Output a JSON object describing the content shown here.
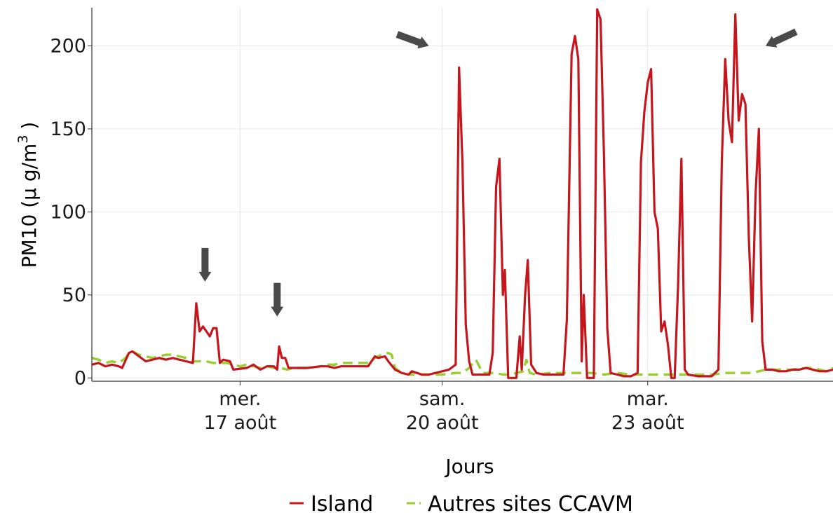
{
  "chart_data": {
    "type": "line",
    "xlabel": "Jours",
    "ylabel": "PM10 (µ g/m",
    "ylabel_sup": "3",
    "ylabel_close": ")",
    "ylim": [
      -2,
      223
    ],
    "xlim": [
      0,
      11
    ],
    "grid": true,
    "legend_position": "bottom",
    "y_ticks": [
      {
        "value": 0,
        "label": "0"
      },
      {
        "value": 50,
        "label": "50"
      },
      {
        "value": 100,
        "label": "100"
      },
      {
        "value": 150,
        "label": "150"
      },
      {
        "value": 200,
        "label": "200"
      }
    ],
    "x_ticks": [
      {
        "day": 2.2,
        "line1": "mer.",
        "line2": "17 août"
      },
      {
        "day": 5.2,
        "line1": "sam.",
        "line2": "20 août"
      },
      {
        "day": 8.25,
        "line1": "mar.",
        "line2": "23 août"
      }
    ],
    "series": [
      {
        "name": "Island",
        "color": "#c4161c",
        "style": "solid",
        "points": [
          [
            0.0,
            8
          ],
          [
            0.1,
            9
          ],
          [
            0.2,
            7
          ],
          [
            0.3,
            8
          ],
          [
            0.4,
            7
          ],
          [
            0.45,
            6
          ],
          [
            0.55,
            15
          ],
          [
            0.6,
            16
          ],
          [
            0.7,
            13
          ],
          [
            0.8,
            10
          ],
          [
            0.9,
            11
          ],
          [
            1.0,
            12
          ],
          [
            1.1,
            11
          ],
          [
            1.2,
            12
          ],
          [
            1.3,
            11
          ],
          [
            1.4,
            10
          ],
          [
            1.5,
            9
          ],
          [
            1.55,
            45
          ],
          [
            1.6,
            28
          ],
          [
            1.65,
            31
          ],
          [
            1.7,
            28
          ],
          [
            1.75,
            25
          ],
          [
            1.8,
            30
          ],
          [
            1.85,
            30
          ],
          [
            1.9,
            9
          ],
          [
            1.95,
            11
          ],
          [
            2.05,
            10
          ],
          [
            2.1,
            5
          ],
          [
            2.3,
            6
          ],
          [
            2.4,
            8
          ],
          [
            2.5,
            5
          ],
          [
            2.6,
            7
          ],
          [
            2.7,
            7
          ],
          [
            2.75,
            5
          ],
          [
            2.78,
            19
          ],
          [
            2.82,
            12
          ],
          [
            2.87,
            12
          ],
          [
            2.92,
            6
          ],
          [
            3.1,
            6
          ],
          [
            3.2,
            6
          ],
          [
            3.4,
            7
          ],
          [
            3.5,
            7
          ],
          [
            3.6,
            6
          ],
          [
            3.7,
            7
          ],
          [
            3.85,
            7
          ],
          [
            4.0,
            7
          ],
          [
            4.1,
            7
          ],
          [
            4.2,
            13
          ],
          [
            4.25,
            12
          ],
          [
            4.35,
            13
          ],
          [
            4.4,
            10
          ],
          [
            4.5,
            5
          ],
          [
            4.6,
            3
          ],
          [
            4.7,
            2
          ],
          [
            4.75,
            4
          ],
          [
            4.9,
            2
          ],
          [
            5.0,
            2
          ],
          [
            5.1,
            3
          ],
          [
            5.3,
            5
          ],
          [
            5.4,
            8
          ],
          [
            5.45,
            187
          ],
          [
            5.5,
            130
          ],
          [
            5.55,
            32
          ],
          [
            5.6,
            10
          ],
          [
            5.65,
            2
          ],
          [
            5.8,
            2
          ],
          [
            5.9,
            2
          ],
          [
            5.95,
            15
          ],
          [
            6.0,
            115
          ],
          [
            6.05,
            132
          ],
          [
            6.1,
            50
          ],
          [
            6.13,
            65
          ],
          [
            6.18,
            0
          ],
          [
            6.3,
            0
          ],
          [
            6.35,
            25
          ],
          [
            6.38,
            5
          ],
          [
            6.43,
            50
          ],
          [
            6.47,
            71
          ],
          [
            6.52,
            8
          ],
          [
            6.6,
            3
          ],
          [
            6.7,
            2
          ],
          [
            6.8,
            2
          ],
          [
            7.0,
            2
          ],
          [
            7.05,
            35
          ],
          [
            7.12,
            195
          ],
          [
            7.17,
            206
          ],
          [
            7.22,
            192
          ],
          [
            7.27,
            10
          ],
          [
            7.3,
            50
          ],
          [
            7.35,
            0
          ],
          [
            7.45,
            0
          ],
          [
            7.5,
            222
          ],
          [
            7.55,
            216
          ],
          [
            7.6,
            135
          ],
          [
            7.65,
            30
          ],
          [
            7.7,
            3
          ],
          [
            7.8,
            2
          ],
          [
            7.9,
            1
          ],
          [
            8.0,
            1
          ],
          [
            8.1,
            3
          ],
          [
            8.15,
            130
          ],
          [
            8.2,
            160
          ],
          [
            8.25,
            178
          ],
          [
            8.3,
            186
          ],
          [
            8.35,
            100
          ],
          [
            8.4,
            90
          ],
          [
            8.45,
            28
          ],
          [
            8.5,
            34
          ],
          [
            8.55,
            20
          ],
          [
            8.6,
            0
          ],
          [
            8.65,
            0
          ],
          [
            8.7,
            55
          ],
          [
            8.75,
            132
          ],
          [
            8.8,
            5
          ],
          [
            8.85,
            2
          ],
          [
            9.0,
            1
          ],
          [
            9.2,
            1
          ],
          [
            9.3,
            5
          ],
          [
            9.35,
            130
          ],
          [
            9.4,
            192
          ],
          [
            9.45,
            155
          ],
          [
            9.5,
            142
          ],
          [
            9.55,
            219
          ],
          [
            9.6,
            155
          ],
          [
            9.65,
            171
          ],
          [
            9.7,
            165
          ],
          [
            9.75,
            85
          ],
          [
            9.8,
            34
          ],
          [
            9.85,
            110
          ],
          [
            9.9,
            150
          ],
          [
            9.95,
            22
          ],
          [
            10.0,
            5
          ],
          [
            10.1,
            5
          ],
          [
            10.2,
            4
          ],
          [
            10.3,
            4
          ],
          [
            10.4,
            5
          ],
          [
            10.5,
            5
          ],
          [
            10.6,
            6
          ],
          [
            10.7,
            5
          ],
          [
            10.8,
            4
          ],
          [
            10.9,
            4
          ],
          [
            11.0,
            5
          ]
        ]
      },
      {
        "name": "Autres sites CCAVM",
        "color": "#9acd32",
        "style": "dashed",
        "points": [
          [
            0.0,
            12
          ],
          [
            0.1,
            11
          ],
          [
            0.2,
            9
          ],
          [
            0.3,
            10
          ],
          [
            0.4,
            9
          ],
          [
            0.5,
            12
          ],
          [
            0.55,
            15
          ],
          [
            0.6,
            16
          ],
          [
            0.7,
            14
          ],
          [
            0.8,
            13
          ],
          [
            0.9,
            12
          ],
          [
            1.0,
            13
          ],
          [
            1.1,
            14
          ],
          [
            1.2,
            14
          ],
          [
            1.3,
            13
          ],
          [
            1.4,
            12
          ],
          [
            1.5,
            10
          ],
          [
            1.6,
            10
          ],
          [
            1.7,
            10
          ],
          [
            1.8,
            9
          ],
          [
            1.9,
            9
          ],
          [
            2.0,
            9
          ],
          [
            2.1,
            8
          ],
          [
            2.2,
            7
          ],
          [
            2.3,
            8
          ],
          [
            2.4,
            7
          ],
          [
            2.5,
            6
          ],
          [
            2.6,
            7
          ],
          [
            2.7,
            6
          ],
          [
            2.8,
            6
          ],
          [
            2.9,
            5
          ],
          [
            3.0,
            6
          ],
          [
            3.2,
            6
          ],
          [
            3.4,
            7
          ],
          [
            3.5,
            8
          ],
          [
            3.6,
            8
          ],
          [
            3.7,
            9
          ],
          [
            3.85,
            9
          ],
          [
            4.0,
            9
          ],
          [
            4.1,
            9
          ],
          [
            4.2,
            12
          ],
          [
            4.3,
            14
          ],
          [
            4.4,
            15
          ],
          [
            4.45,
            14
          ],
          [
            4.5,
            6
          ],
          [
            4.6,
            3
          ],
          [
            4.7,
            2
          ],
          [
            4.8,
            2
          ],
          [
            4.9,
            2
          ],
          [
            5.0,
            2
          ],
          [
            5.2,
            2
          ],
          [
            5.4,
            3
          ],
          [
            5.5,
            3
          ],
          [
            5.6,
            6
          ],
          [
            5.7,
            11
          ],
          [
            5.75,
            7
          ],
          [
            5.8,
            3
          ],
          [
            5.9,
            3
          ],
          [
            6.0,
            3
          ],
          [
            6.1,
            2
          ],
          [
            6.2,
            2
          ],
          [
            6.3,
            3
          ],
          [
            6.4,
            4
          ],
          [
            6.45,
            11
          ],
          [
            6.5,
            3
          ],
          [
            6.6,
            2
          ],
          [
            6.8,
            3
          ],
          [
            7.0,
            3
          ],
          [
            7.2,
            3
          ],
          [
            7.4,
            3
          ],
          [
            7.6,
            2
          ],
          [
            7.8,
            3
          ],
          [
            8.0,
            2
          ],
          [
            8.2,
            2
          ],
          [
            8.4,
            2
          ],
          [
            8.6,
            2
          ],
          [
            8.8,
            2
          ],
          [
            9.0,
            2
          ],
          [
            9.2,
            2
          ],
          [
            9.4,
            3
          ],
          [
            9.6,
            3
          ],
          [
            9.8,
            3
          ],
          [
            9.9,
            4
          ],
          [
            10.0,
            5
          ],
          [
            10.1,
            5
          ],
          [
            10.2,
            5
          ],
          [
            10.4,
            5
          ],
          [
            10.6,
            6
          ],
          [
            10.7,
            6
          ],
          [
            10.8,
            5
          ],
          [
            10.9,
            4
          ],
          [
            11.0,
            6
          ]
        ]
      }
    ],
    "annotations": [
      {
        "type": "arrow",
        "direction": "down",
        "x": 1.68,
        "y": 58
      },
      {
        "type": "arrow",
        "direction": "down",
        "x": 2.75,
        "y": 37
      },
      {
        "type": "arrow",
        "direction": "down-right",
        "x": 5.0,
        "y": 200
      },
      {
        "type": "arrow",
        "direction": "down-left",
        "x": 10.0,
        "y": 200
      }
    ],
    "legend": [
      {
        "label": "Island",
        "color": "#c4161c",
        "style": "solid"
      },
      {
        "label": "Autres sites CCAVM",
        "color": "#9acd32",
        "style": "dashed"
      }
    ]
  }
}
